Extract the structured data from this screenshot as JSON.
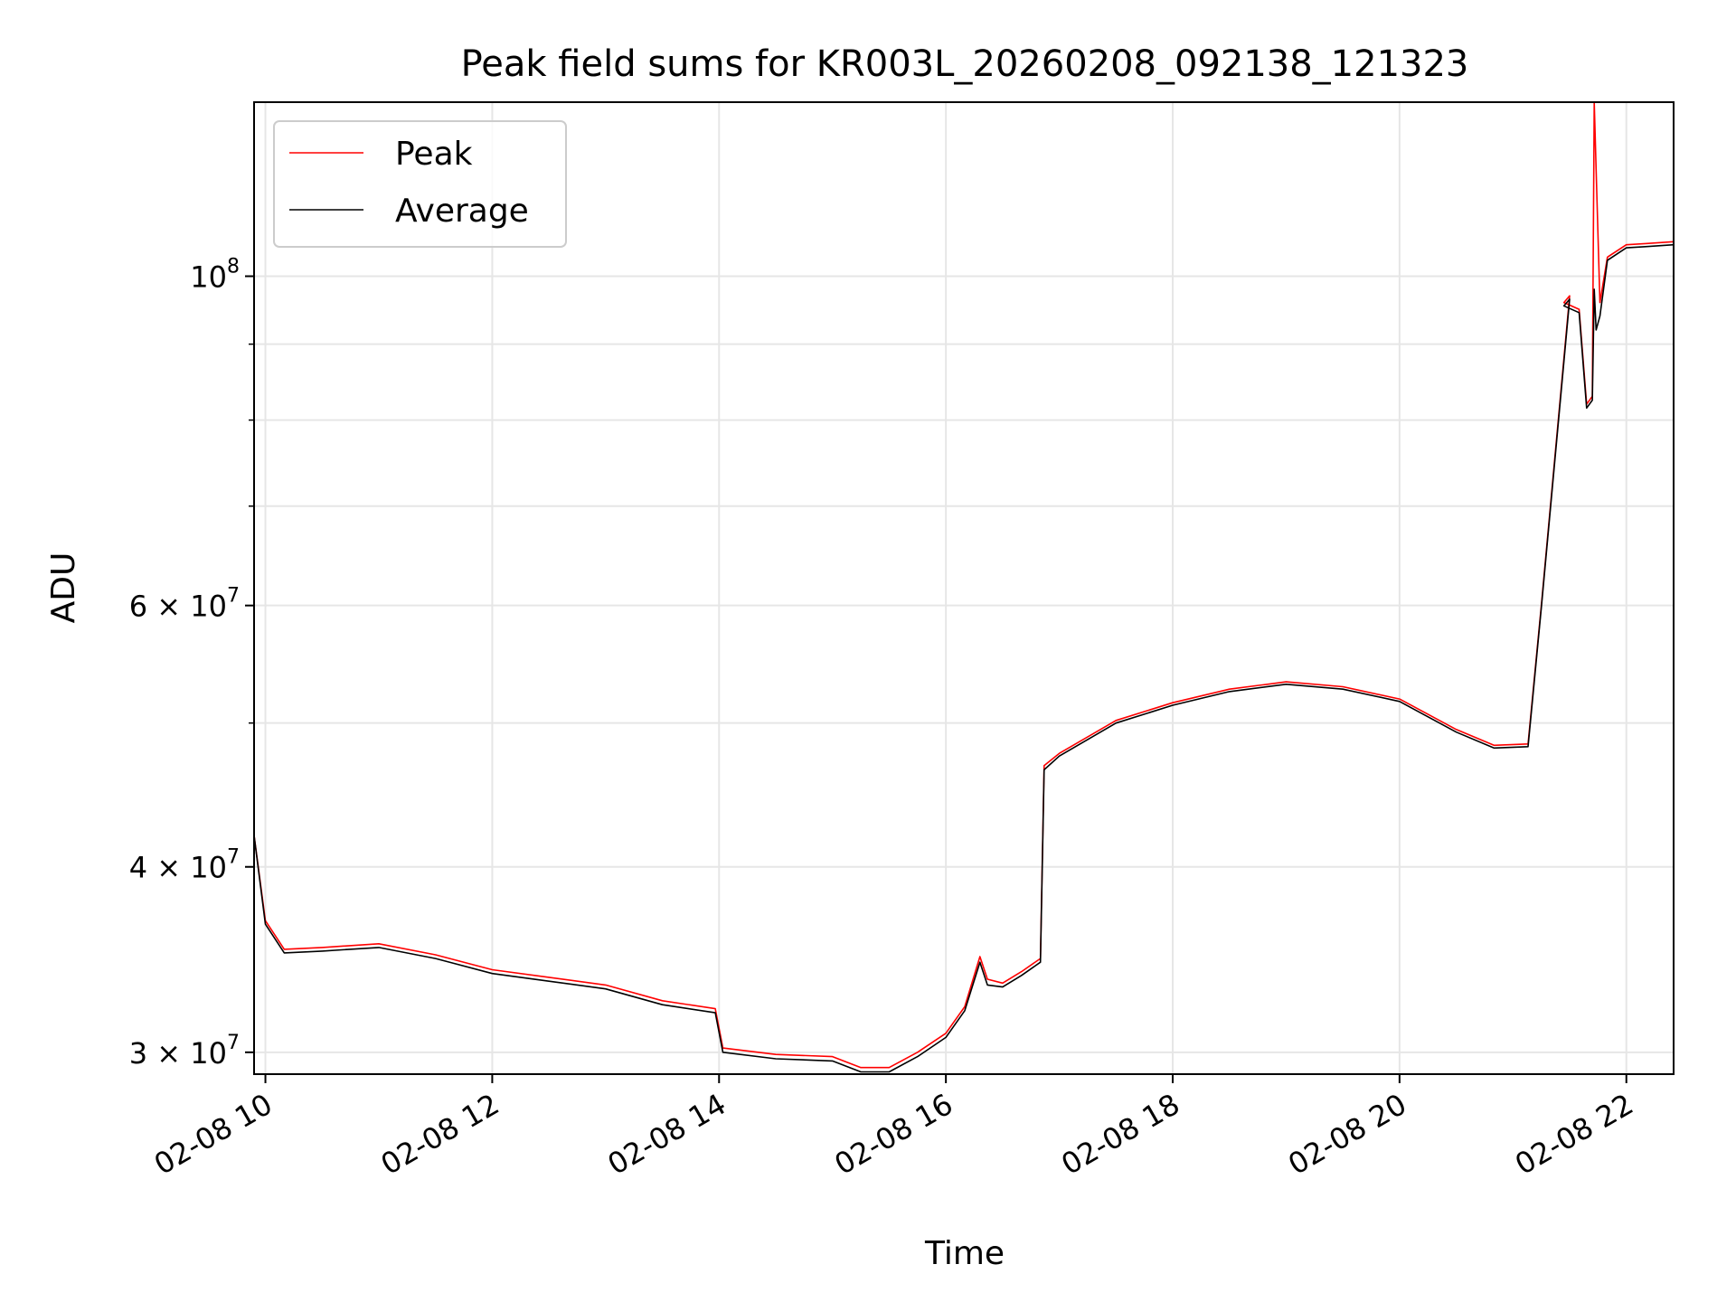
{
  "chart_data": {
    "type": "line",
    "title": "Peak field sums for KR003L_20260208_092138_121323",
    "xlabel": "Time",
    "ylabel": "ADU",
    "yscale": "log",
    "grid": true,
    "legend_position": "top-left",
    "xlim": [
      "02-08 09:54",
      "02-08 22:25"
    ],
    "ylim": [
      29000000,
      131000000
    ],
    "x_ticks": [
      {
        "value": "02-08 10:00",
        "label": "02-08 10"
      },
      {
        "value": "02-08 12:00",
        "label": "02-08 12"
      },
      {
        "value": "02-08 14:00",
        "label": "02-08 14"
      },
      {
        "value": "02-08 16:00",
        "label": "02-08 16"
      },
      {
        "value": "02-08 18:00",
        "label": "02-08 18"
      },
      {
        "value": "02-08 20:00",
        "label": "02-08 20"
      },
      {
        "value": "02-08 22:00",
        "label": "02-08 22"
      }
    ],
    "y_ticks": [
      {
        "value": 30000000,
        "label": "3 × 10",
        "exp": "7"
      },
      {
        "value": 40000000,
        "label": "4 × 10",
        "exp": "7"
      },
      {
        "value": 60000000,
        "label": "6 × 10",
        "exp": "7"
      },
      {
        "value": 100000000,
        "label": "10",
        "exp": "8"
      }
    ],
    "y_minor_ticks": [
      50000000,
      70000000,
      80000000,
      90000000
    ],
    "series": [
      {
        "name": "Peak",
        "color": "#ff0000",
        "x": [
          "02-08 09:54",
          "02-08 10:00",
          "02-08 10:10",
          "02-08 10:30",
          "02-08 11:00",
          "02-08 11:30",
          "02-08 12:00",
          "02-08 12:30",
          "02-08 13:00",
          "02-08 13:30",
          "02-08 13:58",
          "02-08 14:02",
          "02-08 14:30",
          "02-08 15:00",
          "02-08 15:15",
          "02-08 15:30",
          "02-08 15:45",
          "02-08 16:00",
          "02-08 16:10",
          "02-08 16:18",
          "02-08 16:22",
          "02-08 16:30",
          "02-08 16:40",
          "02-08 16:50",
          "02-08 16:52",
          "02-08 17:00",
          "02-08 17:30",
          "02-08 18:00",
          "02-08 18:30",
          "02-08 19:00",
          "02-08 19:30",
          "02-08 20:00",
          "02-08 20:30",
          "02-08 20:50",
          "02-08 21:08",
          "02-08 21:15",
          "02-08 21:30",
          "02-08 21:27",
          "02-08 21:35",
          "02-08 21:39",
          "02-08 21:42",
          "02-08 21:43",
          "02-08 21:44",
          "02-08 21:46",
          "02-08 21:50",
          "02-08 22:00",
          "02-08 22:10",
          "02-08 22:25"
        ],
        "y": [
          42000000,
          36800000,
          35200000,
          35300000,
          35500000,
          34900000,
          34100000,
          33700000,
          33300000,
          32500000,
          32100000,
          30200000,
          29900000,
          29800000,
          29300000,
          29300000,
          30000000,
          30900000,
          32200000,
          34800000,
          33600000,
          33400000,
          34000000,
          34700000,
          46800000,
          47700000,
          50200000,
          51600000,
          52700000,
          53300000,
          52900000,
          51900000,
          49500000,
          48300000,
          48400000,
          60000000,
          97000000,
          96000000,
          95000000,
          82000000,
          83000000,
          131000000,
          118000000,
          96000000,
          103000000,
          105000000,
          105200000,
          105500000
        ]
      },
      {
        "name": "Average",
        "color": "#000000",
        "x": [
          "02-08 09:54",
          "02-08 10:00",
          "02-08 10:10",
          "02-08 10:30",
          "02-08 11:00",
          "02-08 11:30",
          "02-08 12:00",
          "02-08 12:30",
          "02-08 13:00",
          "02-08 13:30",
          "02-08 13:58",
          "02-08 14:02",
          "02-08 14:30",
          "02-08 15:00",
          "02-08 15:15",
          "02-08 15:30",
          "02-08 15:45",
          "02-08 16:00",
          "02-08 16:10",
          "02-08 16:18",
          "02-08 16:22",
          "02-08 16:30",
          "02-08 16:40",
          "02-08 16:50",
          "02-08 16:52",
          "02-08 17:00",
          "02-08 17:30",
          "02-08 18:00",
          "02-08 18:30",
          "02-08 19:00",
          "02-08 19:30",
          "02-08 20:00",
          "02-08 20:30",
          "02-08 20:50",
          "02-08 21:08",
          "02-08 21:15",
          "02-08 21:30",
          "02-08 21:27",
          "02-08 21:35",
          "02-08 21:39",
          "02-08 21:42",
          "02-08 21:43",
          "02-08 21:44",
          "02-08 21:46",
          "02-08 21:50",
          "02-08 22:00",
          "02-08 22:10",
          "02-08 22:25"
        ],
        "y": [
          42000000,
          36600000,
          35000000,
          35100000,
          35300000,
          34700000,
          33900000,
          33500000,
          33100000,
          32300000,
          31900000,
          30000000,
          29700000,
          29600000,
          29100000,
          29100000,
          29800000,
          30700000,
          32000000,
          34500000,
          33300000,
          33200000,
          33800000,
          34500000,
          46500000,
          47500000,
          50000000,
          51400000,
          52500000,
          53100000,
          52700000,
          51700000,
          49300000,
          48100000,
          48200000,
          59800000,
          96500000,
          95500000,
          94500000,
          81500000,
          82500000,
          98000000,
          92000000,
          94000000,
          102500000,
          104500000,
          104700000,
          105000000
        ]
      }
    ]
  }
}
